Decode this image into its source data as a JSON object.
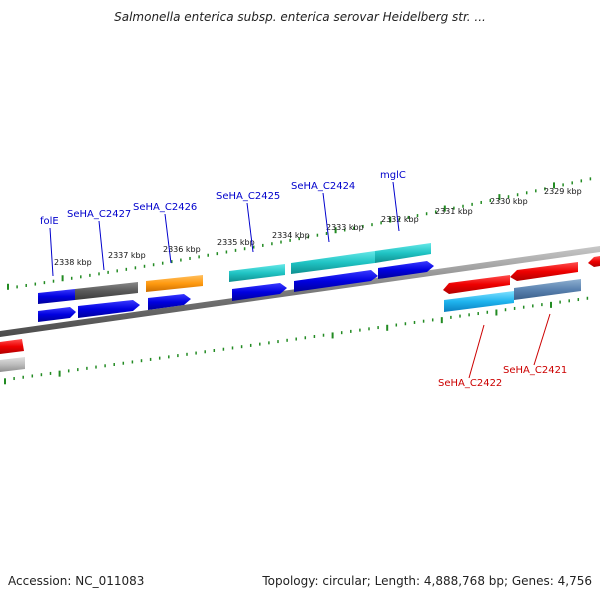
{
  "title": "Salmonella enterica subsp. enterica serovar Heidelberg str. ...",
  "footer": {
    "accession": "Accession: NC_011083",
    "summary": "Topology: circular; Length: 4,888,768 bp; Genes: 4,756"
  },
  "colors": {
    "forward_label": "#0000cc",
    "reverse_label": "#cc0000",
    "tick": "#228b22",
    "backbone": "#8a8a8a"
  },
  "scale_labels": [
    {
      "text": "2338 kbp"
    },
    {
      "text": "2337 kbp"
    },
    {
      "text": "2336 kbp"
    },
    {
      "text": "2335 kbp"
    },
    {
      "text": "2334 kbp"
    },
    {
      "text": "2333 kbp"
    },
    {
      "text": "2332 kbp"
    },
    {
      "text": "2331 kbp"
    },
    {
      "text": "2330 kbp"
    },
    {
      "text": "2329 kbp"
    }
  ],
  "features": [
    {
      "name": "folE",
      "strand": "forward",
      "color": "#0000cc"
    },
    {
      "name": "SeHA_C2427",
      "strand": "forward",
      "color": "#0000cc"
    },
    {
      "name": "SeHA_C2426",
      "strand": "forward",
      "color": "#0000cc"
    },
    {
      "name": "SeHA_C2425",
      "strand": "forward",
      "color": "#0000cc"
    },
    {
      "name": "SeHA_C2424",
      "strand": "forward",
      "color": "#0000cc"
    },
    {
      "name": "mglC",
      "strand": "forward",
      "color": "#0000cc"
    },
    {
      "name": "SeHA_C2422",
      "strand": "reverse",
      "color": "#cc0000"
    },
    {
      "name": "SeHA_C2421",
      "strand": "reverse",
      "color": "#cc0000"
    }
  ]
}
